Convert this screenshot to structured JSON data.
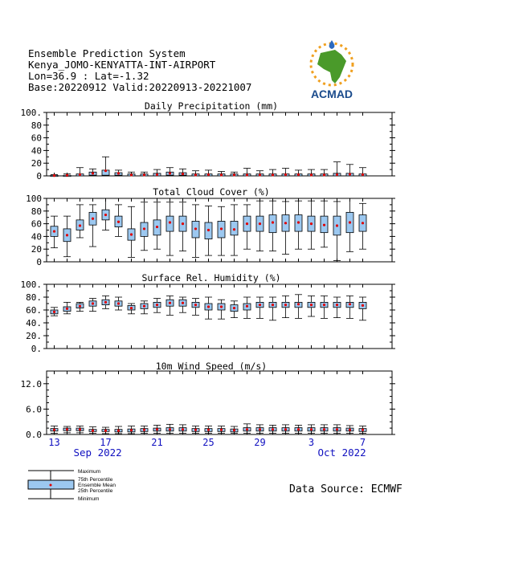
{
  "header": {
    "line1": "Ensemble Prediction System",
    "line2": "Kenya_JOMO-KENYATTA-INT-AIRPORT",
    "line3": "Lon=36.9 : Lat=-1.32",
    "line4": "Base:20220912 Valid:20220913-20221007"
  },
  "logo": {
    "text": "ACMAD",
    "colors": {
      "africa": "#4a9a2a",
      "text": "#1a4b8c",
      "sun": "#f0a020",
      "drop": "#2a6ac0"
    }
  },
  "source": "Data Source: ECMWF",
  "legend": {
    "maximum": "Maximum",
    "p75": "75th Percentile",
    "mean": "Ensemble Mean",
    "p25": "25th Percentile",
    "minimum": "Minimum"
  },
  "colors": {
    "box": "#9cc8f0",
    "mean": "#e00000",
    "date": "#1010c0"
  },
  "xaxis": {
    "day_labels": [
      "13",
      "17",
      "21",
      "25",
      "29",
      "3",
      "7"
    ],
    "day_label_index": [
      0,
      4,
      8,
      12,
      16,
      20,
      24
    ],
    "month_labels": [
      "Sep 2022",
      "Oct 2022"
    ],
    "month_label_index": [
      2,
      21
    ]
  },
  "chart_data": [
    {
      "type": "box",
      "title": "Daily Precipitation (mm)",
      "ylim": [
        0,
        100
      ],
      "yticks": [
        "0",
        "20",
        "40",
        "60",
        "80",
        "100."
      ],
      "ytick_values": [
        0,
        20,
        40,
        60,
        80,
        100
      ],
      "min": [
        0,
        0,
        0,
        0,
        0,
        0,
        0,
        0,
        0,
        0,
        0,
        0,
        0,
        0,
        0,
        0,
        0,
        0,
        0,
        0,
        0,
        0,
        0,
        0,
        0
      ],
      "q25": [
        0,
        0,
        0,
        1,
        1,
        1,
        0,
        0,
        0,
        1,
        1,
        0,
        0,
        0,
        0,
        0,
        0,
        0,
        0,
        0,
        0,
        0,
        0,
        0,
        0
      ],
      "q75": [
        1,
        1,
        3,
        6,
        9,
        5,
        3,
        3,
        4,
        6,
        5,
        3,
        3,
        3,
        3,
        3,
        3,
        3,
        3,
        3,
        3,
        3,
        4,
        4,
        3
      ],
      "max": [
        2,
        3,
        13,
        11,
        30,
        9,
        6,
        6,
        10,
        13,
        11,
        8,
        9,
        7,
        6,
        12,
        8,
        10,
        12,
        9,
        10,
        10,
        22,
        18,
        13
      ],
      "mean": [
        0.5,
        1,
        2,
        4,
        8,
        4,
        1.5,
        1.5,
        2,
        4,
        3,
        1.5,
        2,
        1.5,
        1.5,
        1.5,
        1.5,
        1.5,
        2,
        2,
        1.5,
        1.5,
        2,
        2.5,
        2
      ]
    },
    {
      "type": "box",
      "title": "Total Cloud Cover (%)",
      "ylim": [
        0,
        100
      ],
      "yticks": [
        "0",
        "20",
        "40",
        "60",
        "80",
        "100"
      ],
      "ytick_values": [
        0,
        20,
        40,
        60,
        80,
        100
      ],
      "min": [
        22,
        8,
        38,
        24,
        50,
        40,
        7,
        18,
        20,
        10,
        17,
        7,
        10,
        10,
        10,
        20,
        17,
        17,
        12,
        20,
        20,
        23,
        2,
        16,
        20
      ],
      "q25": [
        40,
        32,
        50,
        58,
        66,
        55,
        34,
        40,
        42,
        48,
        48,
        38,
        36,
        38,
        42,
        48,
        48,
        46,
        48,
        48,
        48,
        46,
        42,
        46,
        48
      ],
      "q75": [
        56,
        52,
        66,
        78,
        82,
        72,
        52,
        62,
        66,
        72,
        72,
        64,
        62,
        64,
        64,
        72,
        72,
        74,
        74,
        74,
        72,
        72,
        72,
        78,
        74
      ],
      "max": [
        72,
        72,
        90,
        90,
        100,
        90,
        87,
        94,
        94,
        94,
        94,
        90,
        88,
        87,
        90,
        90,
        96,
        96,
        95,
        96,
        96,
        96,
        95,
        100,
        92
      ],
      "mean": [
        48,
        42,
        57,
        68,
        74,
        63,
        43,
        52,
        55,
        62,
        60,
        52,
        50,
        52,
        51,
        60,
        60,
        62,
        61,
        62,
        60,
        58,
        57,
        62,
        61
      ]
    },
    {
      "type": "box",
      "title": "Surface Rel. Humidity (%)",
      "ylim": [
        0,
        100
      ],
      "yticks": [
        "0.",
        "20.",
        "40.",
        "60.",
        "80.",
        "100."
      ],
      "ytick_values": [
        0,
        20,
        40,
        60,
        80,
        100
      ],
      "min": [
        51,
        54,
        58,
        58,
        62,
        60,
        54,
        54,
        56,
        52,
        56,
        52,
        46,
        46,
        48,
        47,
        47,
        44,
        48,
        47,
        50,
        47,
        48,
        47,
        44
      ],
      "q25": [
        54,
        58,
        63,
        66,
        68,
        66,
        60,
        62,
        64,
        66,
        66,
        64,
        60,
        60,
        58,
        60,
        64,
        64,
        64,
        64,
        64,
        64,
        64,
        64,
        62
      ],
      "q75": [
        60,
        65,
        70,
        74,
        76,
        74,
        67,
        70,
        72,
        76,
        76,
        72,
        70,
        70,
        68,
        70,
        72,
        72,
        72,
        72,
        72,
        72,
        72,
        72,
        72
      ],
      "max": [
        64,
        72,
        72,
        78,
        82,
        80,
        70,
        74,
        78,
        82,
        80,
        78,
        80,
        76,
        74,
        80,
        80,
        80,
        82,
        84,
        82,
        82,
        80,
        82,
        80
      ],
      "mean": [
        57,
        62,
        66,
        70,
        72,
        70,
        63,
        66,
        68,
        71,
        71,
        68,
        65,
        65,
        63,
        66,
        68,
        68,
        68,
        69,
        68,
        68,
        68,
        69,
        67
      ]
    },
    {
      "type": "box",
      "title": "10m Wind Speed (m/s)",
      "ylim": [
        0,
        15
      ],
      "yticks": [
        "0.0",
        "6.0",
        "12.0"
      ],
      "ytick_values": [
        0,
        6,
        12
      ],
      "min": [
        0.3,
        0.4,
        0.4,
        0.3,
        0.2,
        0.2,
        0.2,
        0.3,
        0.3,
        0.3,
        0.3,
        0.3,
        0.3,
        0.3,
        0.3,
        0.3,
        0.3,
        0.3,
        0.3,
        0.3,
        0.3,
        0.3,
        0.3,
        0.3,
        0.3
      ],
      "q25": [
        0.8,
        0.9,
        0.9,
        0.7,
        0.7,
        0.6,
        0.6,
        0.7,
        0.8,
        0.8,
        0.8,
        0.7,
        0.7,
        0.7,
        0.6,
        0.8,
        0.8,
        0.8,
        0.8,
        0.8,
        0.8,
        0.8,
        0.8,
        0.8,
        0.7
      ],
      "q75": [
        1.4,
        1.5,
        1.5,
        1.2,
        1.2,
        1.2,
        1.3,
        1.4,
        1.5,
        1.6,
        1.6,
        1.4,
        1.4,
        1.4,
        1.3,
        1.6,
        1.6,
        1.6,
        1.6,
        1.6,
        1.6,
        1.6,
        1.6,
        1.5,
        1.4
      ],
      "max": [
        2.0,
        1.9,
        2.0,
        1.8,
        1.7,
        1.9,
        2.0,
        2.0,
        2.2,
        2.4,
        2.3,
        2.0,
        2.0,
        2.0,
        1.9,
        2.5,
        2.3,
        2.2,
        2.3,
        2.2,
        2.3,
        2.3,
        2.3,
        2.1,
        2.0
      ],
      "mean": [
        1.1,
        1.2,
        1.2,
        0.9,
        0.9,
        0.9,
        1.0,
        1.1,
        1.2,
        1.2,
        1.2,
        1.1,
        1.1,
        1.1,
        1.0,
        1.2,
        1.2,
        1.2,
        1.2,
        1.2,
        1.2,
        1.2,
        1.2,
        1.1,
        1.1
      ]
    }
  ]
}
